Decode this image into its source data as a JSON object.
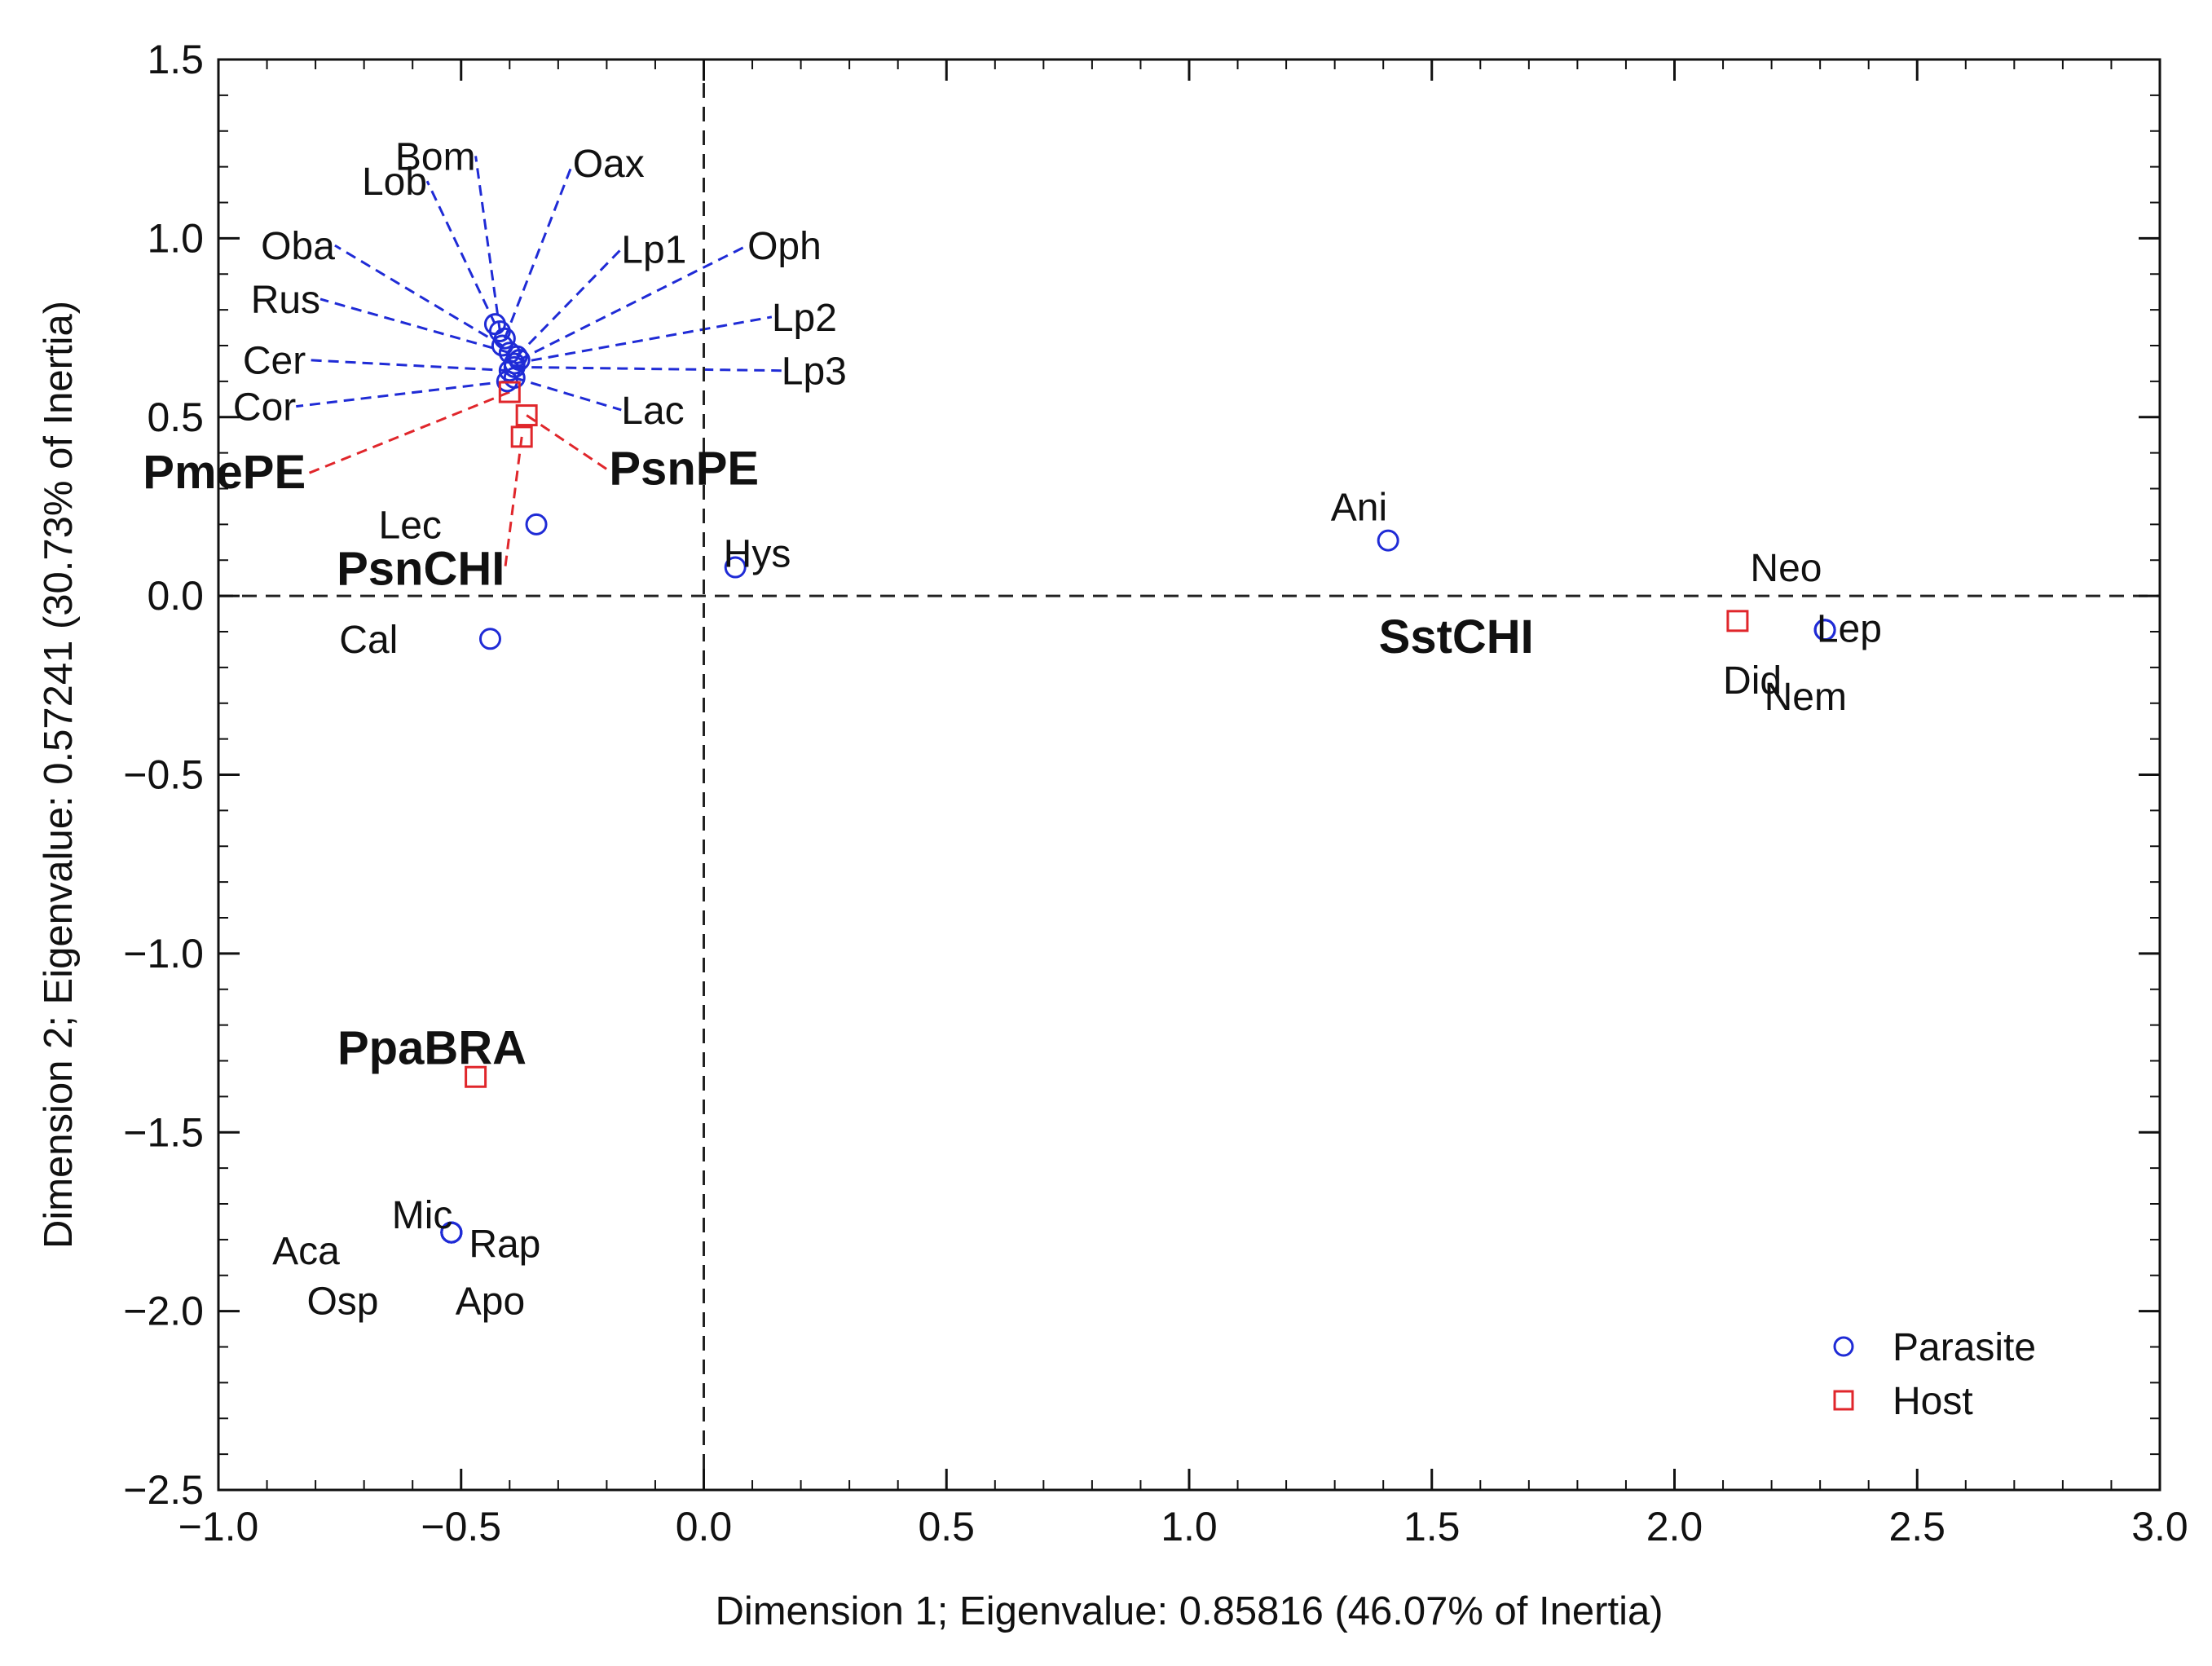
{
  "chart_data": {
    "type": "scatter",
    "title": "",
    "xlabel": "Dimension 1; Eigenvalue: 0.85816 (46.07% of Inertia)",
    "ylabel": "Dimension 2; Eigenvalue: 0.57241 (30.73% of Inertia)",
    "xlim": [
      -1.0,
      3.0
    ],
    "ylim": [
      -2.5,
      1.5
    ],
    "xticks": [
      "−1.0",
      "−0.5",
      "0.0",
      "0.5",
      "1.0",
      "1.5",
      "2.0",
      "2.5",
      "3.0"
    ],
    "yticks": [
      "1.5",
      "1.0",
      "0.5",
      "0.0",
      "−0.5",
      "−1.0",
      "−1.5",
      "−2.0",
      "−2.5"
    ],
    "xtick_values": [
      -1.0,
      -0.5,
      0.0,
      0.5,
      1.0,
      1.5,
      2.0,
      2.5,
      3.0
    ],
    "ytick_values": [
      1.5,
      1.0,
      0.5,
      0.0,
      -0.5,
      -1.0,
      -1.5,
      -2.0,
      -2.5
    ],
    "reference_lines": {
      "x": 0.0,
      "y": 0.0
    },
    "grid": false,
    "legend": {
      "position": "bottom-right",
      "entries": [
        {
          "name": "Parasite",
          "marker": "circle",
          "color": "#1f2bd6"
        },
        {
          "name": "Host",
          "marker": "square",
          "color": "#e0262b"
        }
      ]
    },
    "colors": {
      "parasite": "#1f2bd6",
      "host": "#e0262b"
    },
    "series": [
      {
        "name": "Parasite",
        "marker": "circle",
        "points": [
          {
            "label": "Lob",
            "x": -0.43,
            "y": 0.76,
            "label_pos": [
              -0.57,
              1.16
            ],
            "leader": true
          },
          {
            "label": "Bom",
            "x": -0.42,
            "y": 0.74,
            "label_pos": [
              -0.47,
              1.23
            ],
            "leader": true
          },
          {
            "label": "Oax",
            "x": -0.41,
            "y": 0.72,
            "label_pos": [
              -0.27,
              1.21
            ],
            "leader": true
          },
          {
            "label": "Oba",
            "x": -0.415,
            "y": 0.7,
            "label_pos": [
              -0.76,
              0.98
            ],
            "leader": true
          },
          {
            "label": "Rus",
            "x": -0.4,
            "y": 0.68,
            "label_pos": [
              -0.79,
              0.83
            ],
            "leader": true
          },
          {
            "label": "Lp1",
            "x": -0.385,
            "y": 0.67,
            "label_pos": [
              -0.17,
              0.97
            ],
            "leader": true
          },
          {
            "label": "Oph",
            "x": -0.38,
            "y": 0.66,
            "label_pos": [
              0.09,
              0.98
            ],
            "leader": true
          },
          {
            "label": "Lp2",
            "x": -0.39,
            "y": 0.65,
            "label_pos": [
              0.14,
              0.78
            ],
            "leader": true
          },
          {
            "label": "Lp3",
            "x": -0.39,
            "y": 0.64,
            "label_pos": [
              0.16,
              0.63
            ],
            "leader": true
          },
          {
            "label": "Cer",
            "x": -0.4,
            "y": 0.63,
            "label_pos": [
              -0.82,
              0.66
            ],
            "leader": true
          },
          {
            "label": "Lac",
            "x": -0.39,
            "y": 0.61,
            "label_pos": [
              -0.17,
              0.52
            ],
            "leader": true
          },
          {
            "label": "Cor",
            "x": -0.405,
            "y": 0.6,
            "label_pos": [
              -0.84,
              0.53
            ],
            "leader": true
          },
          {
            "label": "Lec",
            "x": -0.345,
            "y": 0.2,
            "label_pos": [
              -0.54,
              0.2
            ],
            "leader": false
          },
          {
            "label": "Hys",
            "x": 0.065,
            "y": 0.08,
            "label_pos": [
              0.11,
              0.12
            ],
            "leader": false
          },
          {
            "label": "Cal",
            "x": -0.44,
            "y": -0.12,
            "label_pos": [
              -0.63,
              -0.12
            ],
            "leader": false
          },
          {
            "label": "Ani",
            "x": 1.41,
            "y": 0.155,
            "label_pos": [
              1.35,
              0.25
            ],
            "leader": false
          },
          {
            "label": "Lep",
            "x": 2.31,
            "y": -0.095,
            "label_pos": [
              2.36,
              -0.09
            ],
            "leader": false
          },
          {
            "label": "Neo",
            "x": 2.31,
            "y": -0.095,
            "label_pos": [
              2.23,
              0.08
            ],
            "leader": false
          },
          {
            "label": "Nem",
            "x": 2.31,
            "y": -0.095,
            "label_pos": [
              2.27,
              -0.28
            ],
            "leader": false
          },
          {
            "label": "Mic",
            "x": -0.52,
            "y": -1.78,
            "label_pos": [
              -0.58,
              -1.73
            ],
            "leader": false
          },
          {
            "label": "Aca",
            "x": -0.52,
            "y": -1.78,
            "label_pos": [
              -0.75,
              -1.83
            ],
            "leader": false
          },
          {
            "label": "Rap",
            "x": -0.52,
            "y": -1.78,
            "label_pos": [
              -0.41,
              -1.81
            ],
            "leader": false
          },
          {
            "label": "Osp",
            "x": -0.52,
            "y": -1.78,
            "label_pos": [
              -0.67,
              -1.97
            ],
            "leader": false
          },
          {
            "label": "Apo",
            "x": -0.52,
            "y": -1.78,
            "label_pos": [
              -0.44,
              -1.97
            ],
            "leader": false
          }
        ]
      },
      {
        "name": "Host",
        "marker": "square",
        "points": [
          {
            "label": "PmePE",
            "x": -0.4,
            "y": 0.57,
            "label_pos": [
              -0.82,
              0.34
            ],
            "leader": true
          },
          {
            "label": "PsnPE",
            "x": -0.365,
            "y": 0.505,
            "label_pos": [
              -0.195,
              0.35
            ],
            "leader": true
          },
          {
            "label": "PsnCHI",
            "x": -0.375,
            "y": 0.445,
            "label_pos": [
              -0.41,
              0.07
            ],
            "leader": true
          },
          {
            "label": "SstCHI",
            "x": 2.13,
            "y": -0.07,
            "label_pos": [
              1.71,
              -0.12
            ],
            "leader": false
          },
          {
            "label": "PpaBRA",
            "x": -0.47,
            "y": -1.345,
            "label_pos": [
              -0.56,
              -1.27
            ],
            "leader": false
          }
        ]
      }
    ],
    "extra_labels": [
      {
        "label": "Did",
        "x": 2.1,
        "y": -0.235
      }
    ]
  }
}
